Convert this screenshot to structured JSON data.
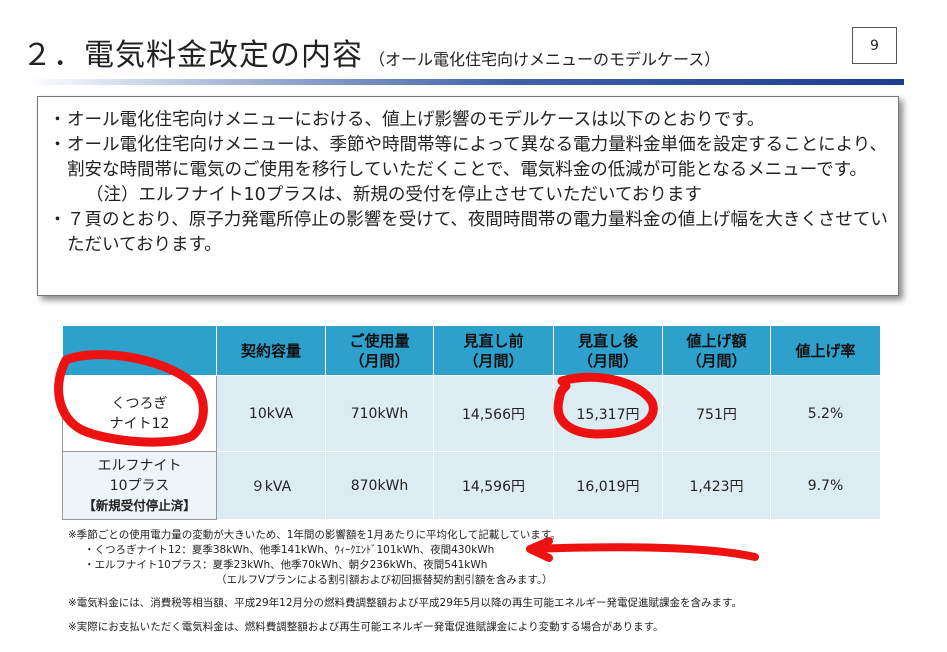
{
  "header": {
    "title": "２．電気料金改定の内容",
    "subtitle": "（オール電化住宅向けメニューのモデルケース）",
    "page_number": "9"
  },
  "bullets": [
    {
      "mark": "・",
      "text": "オール電化住宅向けメニューにおける、値上げ影響のモデルケースは以下のとおりです。"
    },
    {
      "mark": "・",
      "text": "オール電化住宅向けメニューは、季節や時間帯等によって異なる電力量料金単価を設定することにより、割安な時間帯に電気のご使用を移行していただくことで、電気料金の低減が可能となるメニューです。"
    },
    {
      "mark": "",
      "text": "（注）エルフナイト10プラスは、新規の受付を停止させていただいております"
    },
    {
      "mark": "・",
      "text": "７頁のとおり、原子力発電所停止の影響を受けて、夜間時間帯の電力量料金の値上げ幅を大きくさせていただいております。"
    }
  ],
  "table": {
    "headers": [
      {
        "line1": "",
        "line2": ""
      },
      {
        "line1": "契約容量",
        "line2": ""
      },
      {
        "line1": "ご使用量",
        "line2": "（月間）"
      },
      {
        "line1": "見直し前",
        "line2": "（月間）"
      },
      {
        "line1": "見直し後",
        "line2": "（月間）"
      },
      {
        "line1": "値上げ額",
        "line2": "（月間）"
      },
      {
        "line1": "値上げ率",
        "line2": ""
      }
    ],
    "rows": [
      {
        "name_line1": "くつろぎ",
        "name_line2": "ナイト12",
        "tag": "",
        "cells": [
          "10kVA",
          "710kWh",
          "14,566円",
          "15,317円",
          "751円",
          "5.2%"
        ]
      },
      {
        "name_line1": "エルフナイト",
        "name_line2": "10プラス",
        "tag": "【新規受付停止済】",
        "cells": [
          "９kVA",
          "870kWh",
          "14,596円",
          "16,019円",
          "1,423円",
          "9.7%"
        ]
      }
    ]
  },
  "footnotes": [
    "※季節ごとの使用電力量の変動が大きいため、1年間の影響額を1月あたりに平均化して記載しています。",
    "・くつろぎナイト12：夏季38kWh、他季141kWh、ｳｨｰｸｴﾝﾄﾞ101kWh、夜間430kWh",
    "・エルフナイト10プラス：夏季23kWh、他季70kWh、朝夕236kWh、夜間541kWh",
    "（エルフVプランによる割引額および初回振替契約割引額を含みます。）",
    "※電気料金には、消費税等相当額、平成29年12月分の燃料費調整額および平成29年5月以降の再生可能エネルギー発電促進賦課金を含みます。",
    "※実際にお支払いただく電気料金は、燃料費調整額および再生可能エネルギー発電促進賦課金により変動する場合があります。"
  ],
  "colors": {
    "table_header": "#2da0cc",
    "table_cell": "#dcecf3",
    "rule_dark": "#1b3f8f",
    "annotation_red": "#ee1111"
  }
}
